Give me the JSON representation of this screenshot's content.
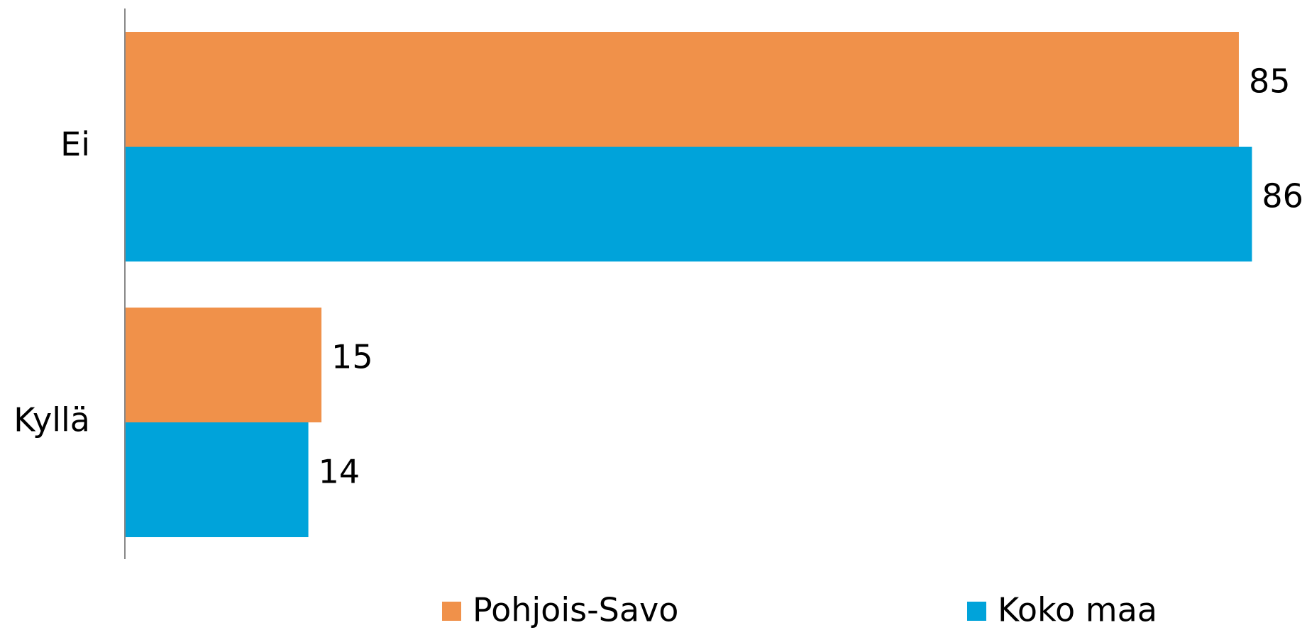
{
  "chart_data": {
    "type": "bar",
    "orientation": "horizontal",
    "categories": [
      "Ei",
      "Kyllä"
    ],
    "series": [
      {
        "name": "Pohjois-Savo",
        "color": "#f0914a",
        "values": [
          85,
          15
        ]
      },
      {
        "name": "Koko maa",
        "color": "#00a3da",
        "values": [
          86,
          14
        ]
      }
    ],
    "legend": "bottom"
  }
}
